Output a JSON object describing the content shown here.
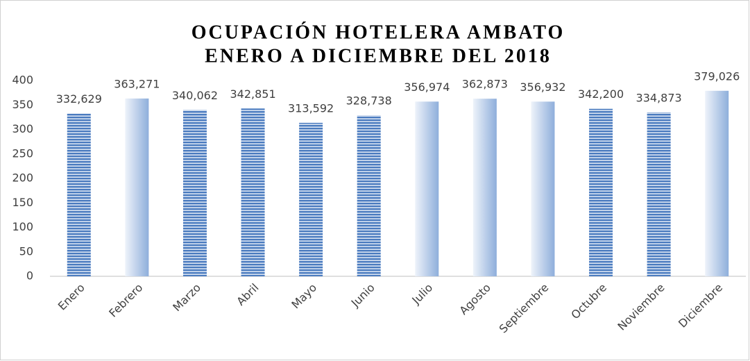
{
  "chart_data": {
    "type": "bar",
    "title": [
      "OCUPACIÓN HOTELERA AMBATO",
      "ENERO A DICIEMBRE DEL 2018"
    ],
    "categories": [
      "Enero",
      "Febrero",
      "Marzo",
      "Abril",
      "Mayo",
      "Junio",
      "Julio",
      "Agosto",
      "Septiembre",
      "Octubre",
      "Noviembre",
      "Diciembre"
    ],
    "values": [
      332.629,
      363.271,
      340.062,
      342.851,
      313.592,
      328.738,
      356.974,
      362.873,
      356.932,
      342.2,
      334.873,
      379.026
    ],
    "value_labels": [
      "332,629",
      "363,271",
      "340,062",
      "342,851",
      "313,592",
      "328,738",
      "356,974",
      "362,873",
      "356,932",
      "342,200",
      "334,873",
      "379,026"
    ],
    "bar_styles": [
      "striped",
      "gradient",
      "striped",
      "striped",
      "striped",
      "striped",
      "gradient",
      "gradient",
      "gradient",
      "striped",
      "striped",
      "gradient"
    ],
    "color": "#4a7bbf",
    "gradient_colors": [
      "#eef3fa",
      "#8eaedb"
    ],
    "ylim": [
      0,
      400
    ],
    "yticks": [
      0,
      50,
      100,
      150,
      200,
      250,
      300,
      350,
      400
    ],
    "grid": false
  }
}
